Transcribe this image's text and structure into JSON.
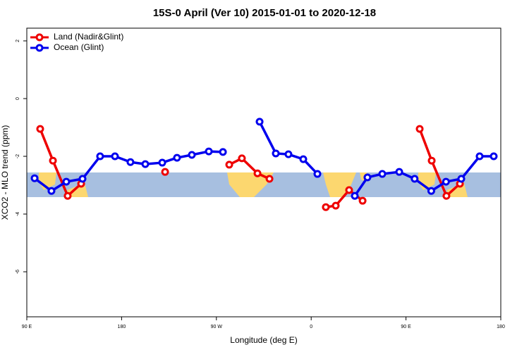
{
  "chart_data": {
    "type": "line",
    "title": "15S-0 April (Ver 10)   2015-01-01 to 2020-12-18",
    "xlabel": "Longitude (deg E)",
    "ylabel": "XCO2 - MLO trend (ppm)",
    "xlim": [
      90,
      540
    ],
    "xticks": [
      {
        "value": 90,
        "label": "90 E"
      },
      180,
      {
        "value": 270,
        "label": "90 W"
      },
      {
        "value": 360,
        "label": "0"
      },
      {
        "value": 450,
        "label": "90 E"
      },
      {
        "value": 540,
        "label": "180"
      }
    ],
    "ylim": [
      -7.56,
      2.44
    ],
    "yticks": [
      2,
      0,
      -2,
      -4,
      -6
    ],
    "legend": "top-left",
    "series": [
      {
        "name": "Land (Nadir&Glint)",
        "color": "#ee0000",
        "x": [
          102.7,
          114.8,
          128.8,
          141.6,
          null,
          221.3,
          null,
          282.2,
          294.2,
          309,
          320.4,
          null,
          373.9,
          383.3,
          396,
          408.8,
          null,
          463,
          474.4,
          488.4,
          501.2
        ],
        "values": [
          -1.05,
          -2.15,
          -3.37,
          -2.95,
          null,
          -2.54,
          null,
          -2.29,
          -2.07,
          -2.59,
          -2.78,
          null,
          -3.76,
          -3.71,
          -3.17,
          -3.54,
          null,
          -1.05,
          -2.15,
          -3.37,
          -2.95
        ]
      },
      {
        "name": "Ocean (Glint)",
        "color": "#0000ee",
        "x": [
          97.4,
          113.4,
          127.5,
          142.9,
          159.6,
          173.7,
          188.4,
          202.5,
          218.6,
          232.6,
          246.7,
          262.8,
          276.2,
          null,
          311,
          326.4,
          338.4,
          352.5,
          365.9,
          null,
          401.4,
          413.4,
          427.5,
          443.6,
          458.2,
          474,
          488,
          502.5,
          519.9,
          533.3
        ],
        "values": [
          -2.76,
          -3.2,
          -2.88,
          -2.78,
          -2,
          -2,
          -2.2,
          -2.27,
          -2.22,
          -2.05,
          -1.95,
          -1.83,
          -1.85,
          null,
          -0.8,
          -1.9,
          -1.93,
          -2.1,
          -2.61,
          null,
          -3.37,
          -2.73,
          -2.61,
          -2.54,
          -2.78,
          -3.2,
          -2.88,
          -2.78,
          -2,
          -2
        ]
      }
    ]
  }
}
